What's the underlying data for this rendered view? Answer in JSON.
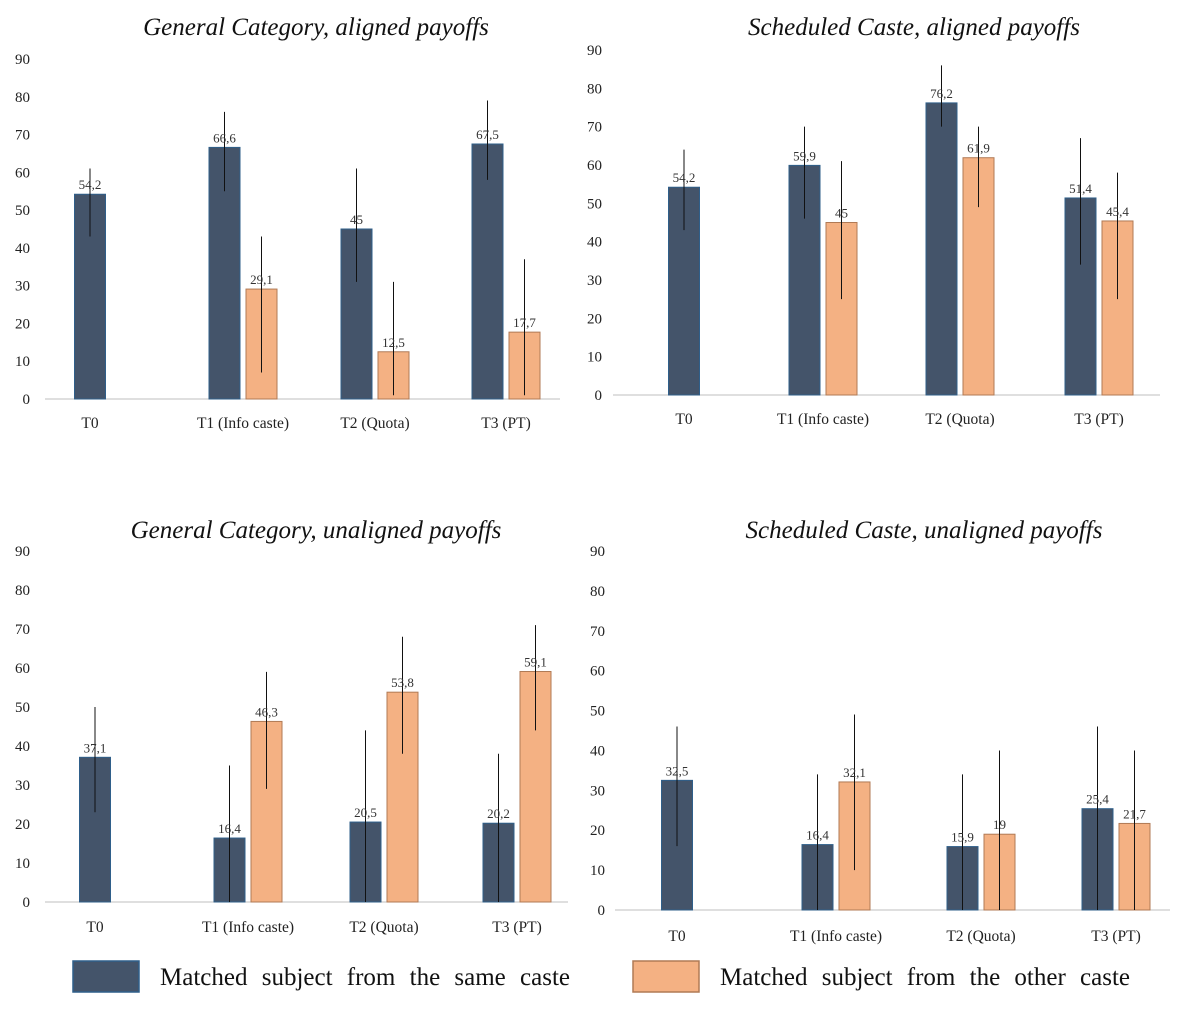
{
  "colors": {
    "same": "#44546a",
    "other": "#f4b183",
    "same_border": "#2f5f8a",
    "other_border": "#b07a55",
    "error": "#111111",
    "axis": "#bfbfbf"
  },
  "legend": {
    "same_label": "Matched subject from the same caste",
    "other_label": "Matched subject from the other caste"
  },
  "chart_data": [
    {
      "type": "bar",
      "title": "General Category, aligned payoffs",
      "categories": [
        "T0",
        "T1 (Info caste)",
        "T2 (Quota)",
        "T3 (PT)"
      ],
      "ylim": [
        0,
        90
      ],
      "yticks": [
        "0",
        "10",
        "20",
        "30",
        "40",
        "50",
        "60",
        "70",
        "80",
        "90"
      ],
      "series": [
        {
          "name": "Matched subject from the same caste",
          "values": [
            54.2,
            66.6,
            45,
            67.5
          ],
          "labels": [
            "54,2",
            "66,6",
            "45",
            "67,5"
          ],
          "err_low": [
            43,
            55,
            31,
            58
          ],
          "err_high": [
            61,
            76,
            61,
            79
          ]
        },
        {
          "name": "Matched subject from the other caste",
          "values": [
            null,
            29.1,
            12.5,
            17.7
          ],
          "labels": [
            "",
            "29,1",
            "12,5",
            "17,7"
          ],
          "err_low": [
            null,
            7,
            1,
            1
          ],
          "err_high": [
            null,
            43,
            31,
            37
          ]
        }
      ]
    },
    {
      "type": "bar",
      "title": "Scheduled Caste, aligned payoffs",
      "categories": [
        "T0",
        "T1 (Info caste)",
        "T2 (Quota)",
        "T3 (PT)"
      ],
      "ylim": [
        0,
        90
      ],
      "yticks": [
        "0",
        "10",
        "20",
        "30",
        "40",
        "50",
        "60",
        "70",
        "80",
        "90"
      ],
      "series": [
        {
          "name": "Matched subject from the same caste",
          "values": [
            54.2,
            59.9,
            76.2,
            51.4
          ],
          "labels": [
            "54,2",
            "59,9",
            "76,2",
            "51,4"
          ],
          "err_low": [
            43,
            46,
            70,
            34
          ],
          "err_high": [
            64,
            70,
            86,
            67
          ]
        },
        {
          "name": "Matched subject from the other caste",
          "values": [
            null,
            45,
            61.9,
            45.4
          ],
          "labels": [
            "",
            "45",
            "61,9",
            "45,4"
          ],
          "err_low": [
            null,
            25,
            49,
            25
          ],
          "err_high": [
            null,
            61,
            70,
            58
          ]
        }
      ]
    },
    {
      "type": "bar",
      "title": "General Category, unaligned payoffs",
      "categories": [
        "T0",
        "T1 (Info caste)",
        "T2 (Quota)",
        "T3 (PT)"
      ],
      "ylim": [
        0,
        90
      ],
      "yticks": [
        "0",
        "10",
        "20",
        "30",
        "40",
        "50",
        "60",
        "70",
        "80",
        "90"
      ],
      "series": [
        {
          "name": "Matched subject from the same caste",
          "values": [
            37.1,
            16.4,
            20.5,
            20.2
          ],
          "labels": [
            "37,1",
            "16,4",
            "20,5",
            "20,2"
          ],
          "err_low": [
            23,
            0,
            0,
            0
          ],
          "err_high": [
            50,
            35,
            44,
            38
          ]
        },
        {
          "name": "Matched subject from the other caste",
          "values": [
            null,
            46.3,
            53.8,
            59.1
          ],
          "labels": [
            "",
            "46,3",
            "53,8",
            "59,1"
          ],
          "err_low": [
            null,
            29,
            38,
            44
          ],
          "err_high": [
            null,
            59,
            68,
            71
          ]
        }
      ]
    },
    {
      "type": "bar",
      "title": "Scheduled Caste, unaligned payoffs",
      "categories": [
        "T0",
        "T1 (Info caste)",
        "T2 (Quota)",
        "T3 (PT)"
      ],
      "ylim": [
        0,
        90
      ],
      "yticks": [
        "0",
        "10",
        "20",
        "30",
        "40",
        "50",
        "60",
        "70",
        "80",
        "90"
      ],
      "series": [
        {
          "name": "Matched subject from the same caste",
          "values": [
            32.5,
            16.4,
            15.9,
            25.4
          ],
          "labels": [
            "32,5",
            "16,4",
            "15,9",
            "25,4"
          ],
          "err_low": [
            16,
            0,
            0,
            0
          ],
          "err_high": [
            46,
            34,
            34,
            46
          ]
        },
        {
          "name": "Matched subject from the other caste",
          "values": [
            null,
            32.1,
            19,
            21.7
          ],
          "labels": [
            "",
            "32,1",
            "19",
            "21,7"
          ],
          "err_low": [
            null,
            10,
            0,
            0
          ],
          "err_high": [
            null,
            49,
            40,
            40
          ]
        }
      ]
    }
  ]
}
